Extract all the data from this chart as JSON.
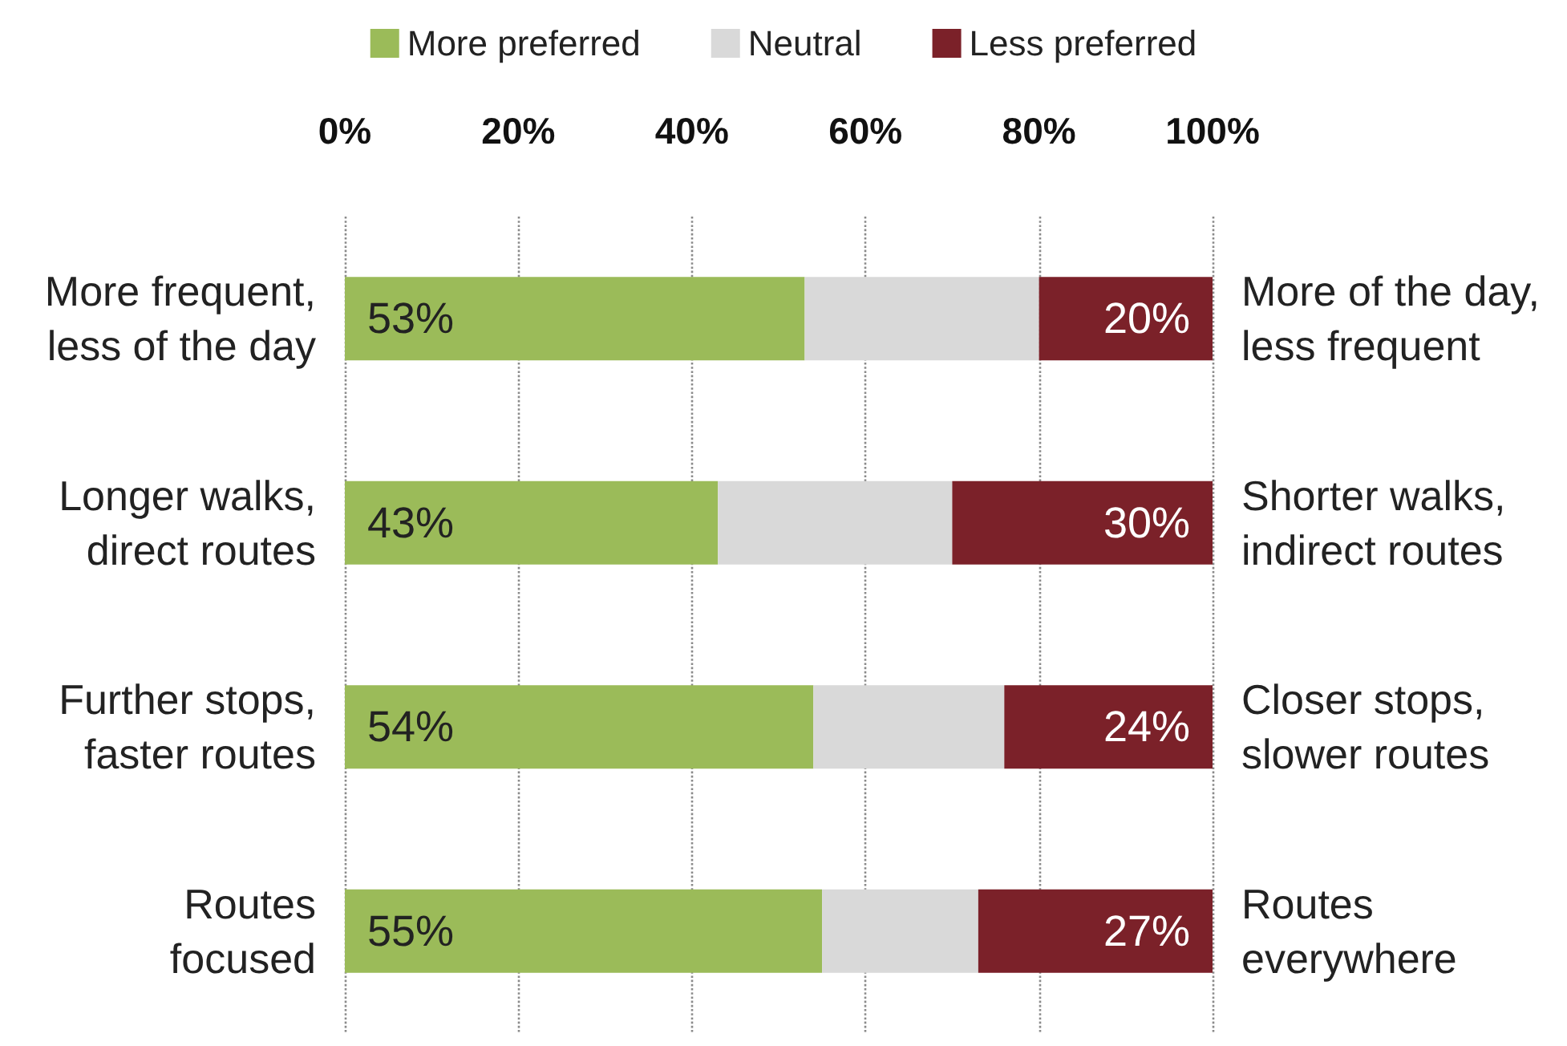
{
  "chart_data": {
    "type": "bar",
    "orientation": "horizontal",
    "stacked": true,
    "categories": [
      "More frequent,\nless of the day",
      "Longer walks,\ndirect routes",
      "Further stops,\nfaster routes",
      "Routes\nfocused"
    ],
    "y2_categories": [
      "More of the day,\nless frequent",
      "Shorter walks,\nindirect routes",
      "Closer stops,\nslower routes",
      "Routes\neverywhere"
    ],
    "series": [
      {
        "name": "More preferred",
        "color": "#9bbb59",
        "values": [
          53,
          43,
          54,
          55
        ],
        "value_labels": [
          "53%",
          "43%",
          "54%",
          "55%"
        ]
      },
      {
        "name": "Neutral",
        "color": "#d9d9d9",
        "values": [
          27,
          27,
          22,
          18
        ]
      },
      {
        "name": "Less preferred",
        "color": "#7b2129",
        "values": [
          20,
          30,
          24,
          27
        ],
        "value_labels": [
          "20%",
          "30%",
          "24%",
          "27%"
        ]
      }
    ],
    "xlim": [
      0,
      100
    ],
    "xticks": [
      {
        "value": 0,
        "label": "0%"
      },
      {
        "value": 20,
        "label": "20%"
      },
      {
        "value": 40,
        "label": "40%"
      },
      {
        "value": 60,
        "label": "60%"
      },
      {
        "value": 80,
        "label": "80%"
      },
      {
        "value": 100,
        "label": "100%"
      }
    ],
    "grid": "x",
    "legend": "top"
  }
}
